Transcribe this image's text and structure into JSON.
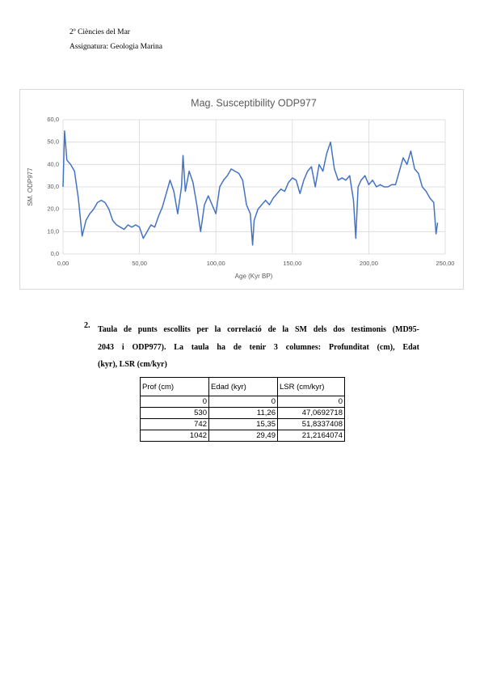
{
  "header": {
    "line1": "2º Ciències del Mar",
    "line2": "Assignatura: Geologia Marina"
  },
  "chart_data": {
    "type": "line",
    "title": "Mag. Susceptibility ODP977",
    "x_label": "Age (Kyr BP)",
    "y_label": "SM. ODP977",
    "x": [
      0,
      1,
      2.5,
      5,
      7.5,
      10,
      12.5,
      15,
      17.5,
      20,
      22.5,
      25,
      27.5,
      30,
      32.5,
      35,
      37.5,
      40,
      42.5,
      45,
      47.5,
      50,
      52.5,
      55,
      57.5,
      60,
      62.5,
      65,
      67.5,
      70,
      72.5,
      75,
      77.5,
      78.5,
      80,
      82.5,
      85,
      87.5,
      90,
      92.5,
      95,
      97.5,
      100,
      102.5,
      105,
      107.5,
      110,
      112.5,
      115,
      117.5,
      120,
      122.5,
      124,
      125,
      127.5,
      130,
      132.5,
      135,
      137.5,
      140,
      142.5,
      145,
      147.5,
      150,
      152.5,
      155,
      157.5,
      160,
      162.5,
      165,
      167.5,
      170,
      172.5,
      175,
      177.5,
      180,
      182.5,
      185,
      187.5,
      190,
      191.5,
      193,
      195,
      197.5,
      200,
      202.5,
      205,
      207.5,
      210,
      212.5,
      215,
      217.5,
      220,
      222.5,
      225,
      227.5,
      230,
      232.5,
      235,
      237.5,
      240,
      242.5,
      244,
      245
    ],
    "series": [
      {
        "name": "SM. ODP977",
        "color": "#4472c4",
        "values": [
          30,
          55,
          42,
          40,
          37,
          25,
          8,
          15,
          18,
          20,
          23,
          24,
          23,
          20,
          15,
          13,
          12,
          11,
          13,
          12,
          13,
          12,
          7,
          10,
          13,
          12,
          17,
          21,
          27,
          33,
          28,
          18,
          30,
          44,
          28,
          37,
          32,
          22,
          10,
          22,
          26,
          22,
          18,
          30,
          33,
          35,
          38,
          37,
          36,
          33,
          22,
          18,
          4,
          15,
          20,
          22,
          24,
          22,
          25,
          27,
          29,
          28,
          32,
          34,
          33,
          27,
          33,
          37,
          39,
          30,
          40,
          37,
          45,
          50,
          38,
          33,
          34,
          33,
          35,
          24,
          7,
          30,
          33,
          35,
          31,
          33,
          30,
          31,
          30,
          30,
          31,
          31,
          37,
          43,
          40,
          46,
          38,
          36,
          30,
          28,
          25,
          23,
          9,
          14
        ]
      }
    ],
    "xlim": [
      0,
      250
    ],
    "ylim": [
      0,
      60
    ],
    "xticks": [
      {
        "value": 0,
        "label": "0,00"
      },
      {
        "value": 50,
        "label": "50,00"
      },
      {
        "value": 100,
        "label": "100,00"
      },
      {
        "value": 150,
        "label": "150,00"
      },
      {
        "value": 200,
        "label": "200,00"
      },
      {
        "value": 250,
        "label": "250,00"
      }
    ],
    "yticks": [
      {
        "value": 0,
        "label": "0,0"
      },
      {
        "value": 10,
        "label": "10,0"
      },
      {
        "value": 20,
        "label": "20,0"
      },
      {
        "value": 30,
        "label": "30,0"
      },
      {
        "value": 40,
        "label": "40,0"
      },
      {
        "value": 50,
        "label": "50,0"
      },
      {
        "value": 60,
        "label": "60,0"
      }
    ],
    "grid": true
  },
  "section": {
    "number": "2.",
    "lines": [
      "Taula de punts escollits per la correlació de la SM dels dos testimonis (MD95-",
      "2043 i ODP977). La taula ha de tenir 3 columnes: Profunditat (cm), Edat",
      "(kyr), LSR (cm/kyr)"
    ]
  },
  "table": {
    "header": [
      "Prof (cm)",
      "Edad (kyr)",
      "LSR (cm/kyr)"
    ],
    "rows": [
      [
        "0",
        "0",
        "0"
      ],
      [
        "530",
        "11,26",
        "47,0692718"
      ],
      [
        "742",
        "15,35",
        "51,8337408"
      ],
      [
        "1042",
        "29,49",
        "21,2164074"
      ]
    ]
  }
}
